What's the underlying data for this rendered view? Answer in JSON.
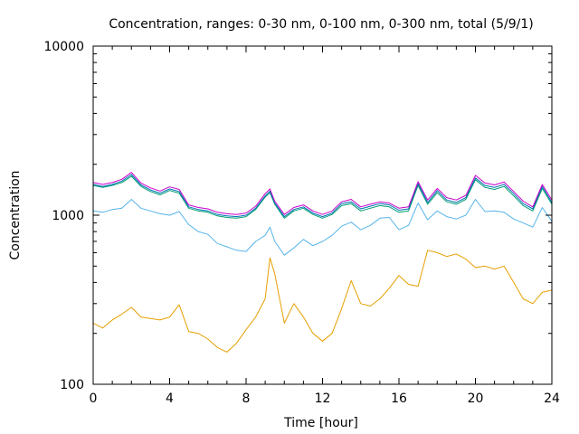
{
  "chart_data": {
    "type": "line",
    "title": "Concentration, ranges: 0-30 nm, 0-100 nm, 0-300 nm, total (5/9/1)",
    "xlabel": "Time [hour]",
    "ylabel": "Concentration",
    "xlim": [
      0,
      24
    ],
    "ylim": [
      100,
      10000
    ],
    "yscale": "log",
    "xticks": [
      0,
      4,
      8,
      12,
      16,
      20,
      24
    ],
    "yticks": [
      100,
      1000,
      10000
    ],
    "ytick_labels": [
      "100",
      "1000",
      "10000"
    ],
    "grid": false,
    "legend": "none",
    "x": [
      0,
      0.5,
      1,
      1.5,
      2,
      2.5,
      3,
      3.5,
      4,
      4.5,
      5,
      5.5,
      6,
      6.5,
      7,
      7.5,
      8,
      8.5,
      9,
      9.25,
      9.5,
      10,
      10.5,
      11,
      11.5,
      12,
      12.5,
      13,
      13.5,
      14,
      14.5,
      15,
      15.5,
      16,
      16.5,
      17,
      17.5,
      18,
      18.5,
      19,
      19.5,
      20,
      20.5,
      21,
      21.5,
      22,
      22.5,
      23,
      23.5,
      24
    ],
    "series": [
      {
        "color": "#e69f00",
        "values": [
          230,
          215,
          240,
          260,
          285,
          250,
          245,
          240,
          250,
          295,
          205,
          200,
          185,
          165,
          155,
          175,
          210,
          250,
          320,
          560,
          450,
          230,
          300,
          250,
          200,
          180,
          200,
          280,
          410,
          300,
          290,
          320,
          370,
          440,
          390,
          380,
          620,
          600,
          570,
          590,
          550,
          490,
          500,
          480,
          500,
          400,
          320,
          300,
          350,
          360
        ]
      },
      {
        "color": "#56b4e9",
        "values": [
          1060,
          1040,
          1080,
          1100,
          1240,
          1100,
          1060,
          1020,
          1000,
          1050,
          880,
          800,
          770,
          680,
          650,
          620,
          610,
          700,
          760,
          850,
          700,
          580,
          640,
          720,
          660,
          700,
          760,
          860,
          910,
          820,
          870,
          960,
          970,
          820,
          870,
          1180,
          940,
          1060,
          980,
          950,
          1000,
          1240,
          1050,
          1060,
          1040,
          950,
          900,
          850,
          1110,
          920
        ]
      },
      {
        "color": "#009e73",
        "values": [
          1500,
          1460,
          1500,
          1560,
          1700,
          1480,
          1380,
          1320,
          1400,
          1350,
          1100,
          1060,
          1040,
          990,
          970,
          960,
          980,
          1080,
          1280,
          1360,
          1160,
          960,
          1060,
          1100,
          1010,
          960,
          1010,
          1140,
          1170,
          1060,
          1100,
          1140,
          1120,
          1040,
          1060,
          1500,
          1160,
          1360,
          1200,
          1160,
          1240,
          1620,
          1460,
          1420,
          1480,
          1300,
          1140,
          1060,
          1440,
          1160
        ]
      },
      {
        "color": "#0072b2",
        "values": [
          1520,
          1480,
          1520,
          1590,
          1740,
          1510,
          1410,
          1350,
          1430,
          1380,
          1120,
          1080,
          1060,
          1010,
          990,
          980,
          1000,
          1100,
          1300,
          1390,
          1180,
          980,
          1080,
          1120,
          1030,
          980,
          1030,
          1170,
          1200,
          1090,
          1130,
          1170,
          1150,
          1070,
          1090,
          1540,
          1190,
          1400,
          1230,
          1190,
          1270,
          1660,
          1500,
          1460,
          1520,
          1340,
          1170,
          1090,
          1480,
          1190
        ]
      },
      {
        "color": "#cc00cc",
        "values": [
          1560,
          1520,
          1560,
          1630,
          1790,
          1550,
          1450,
          1390,
          1470,
          1420,
          1150,
          1110,
          1090,
          1040,
          1020,
          1010,
          1030,
          1130,
          1340,
          1430,
          1210,
          1010,
          1110,
          1150,
          1060,
          1010,
          1060,
          1200,
          1240,
          1120,
          1160,
          1200,
          1180,
          1100,
          1120,
          1580,
          1230,
          1440,
          1270,
          1230,
          1310,
          1720,
          1550,
          1510,
          1570,
          1380,
          1210,
          1120,
          1520,
          1230
        ]
      }
    ]
  }
}
